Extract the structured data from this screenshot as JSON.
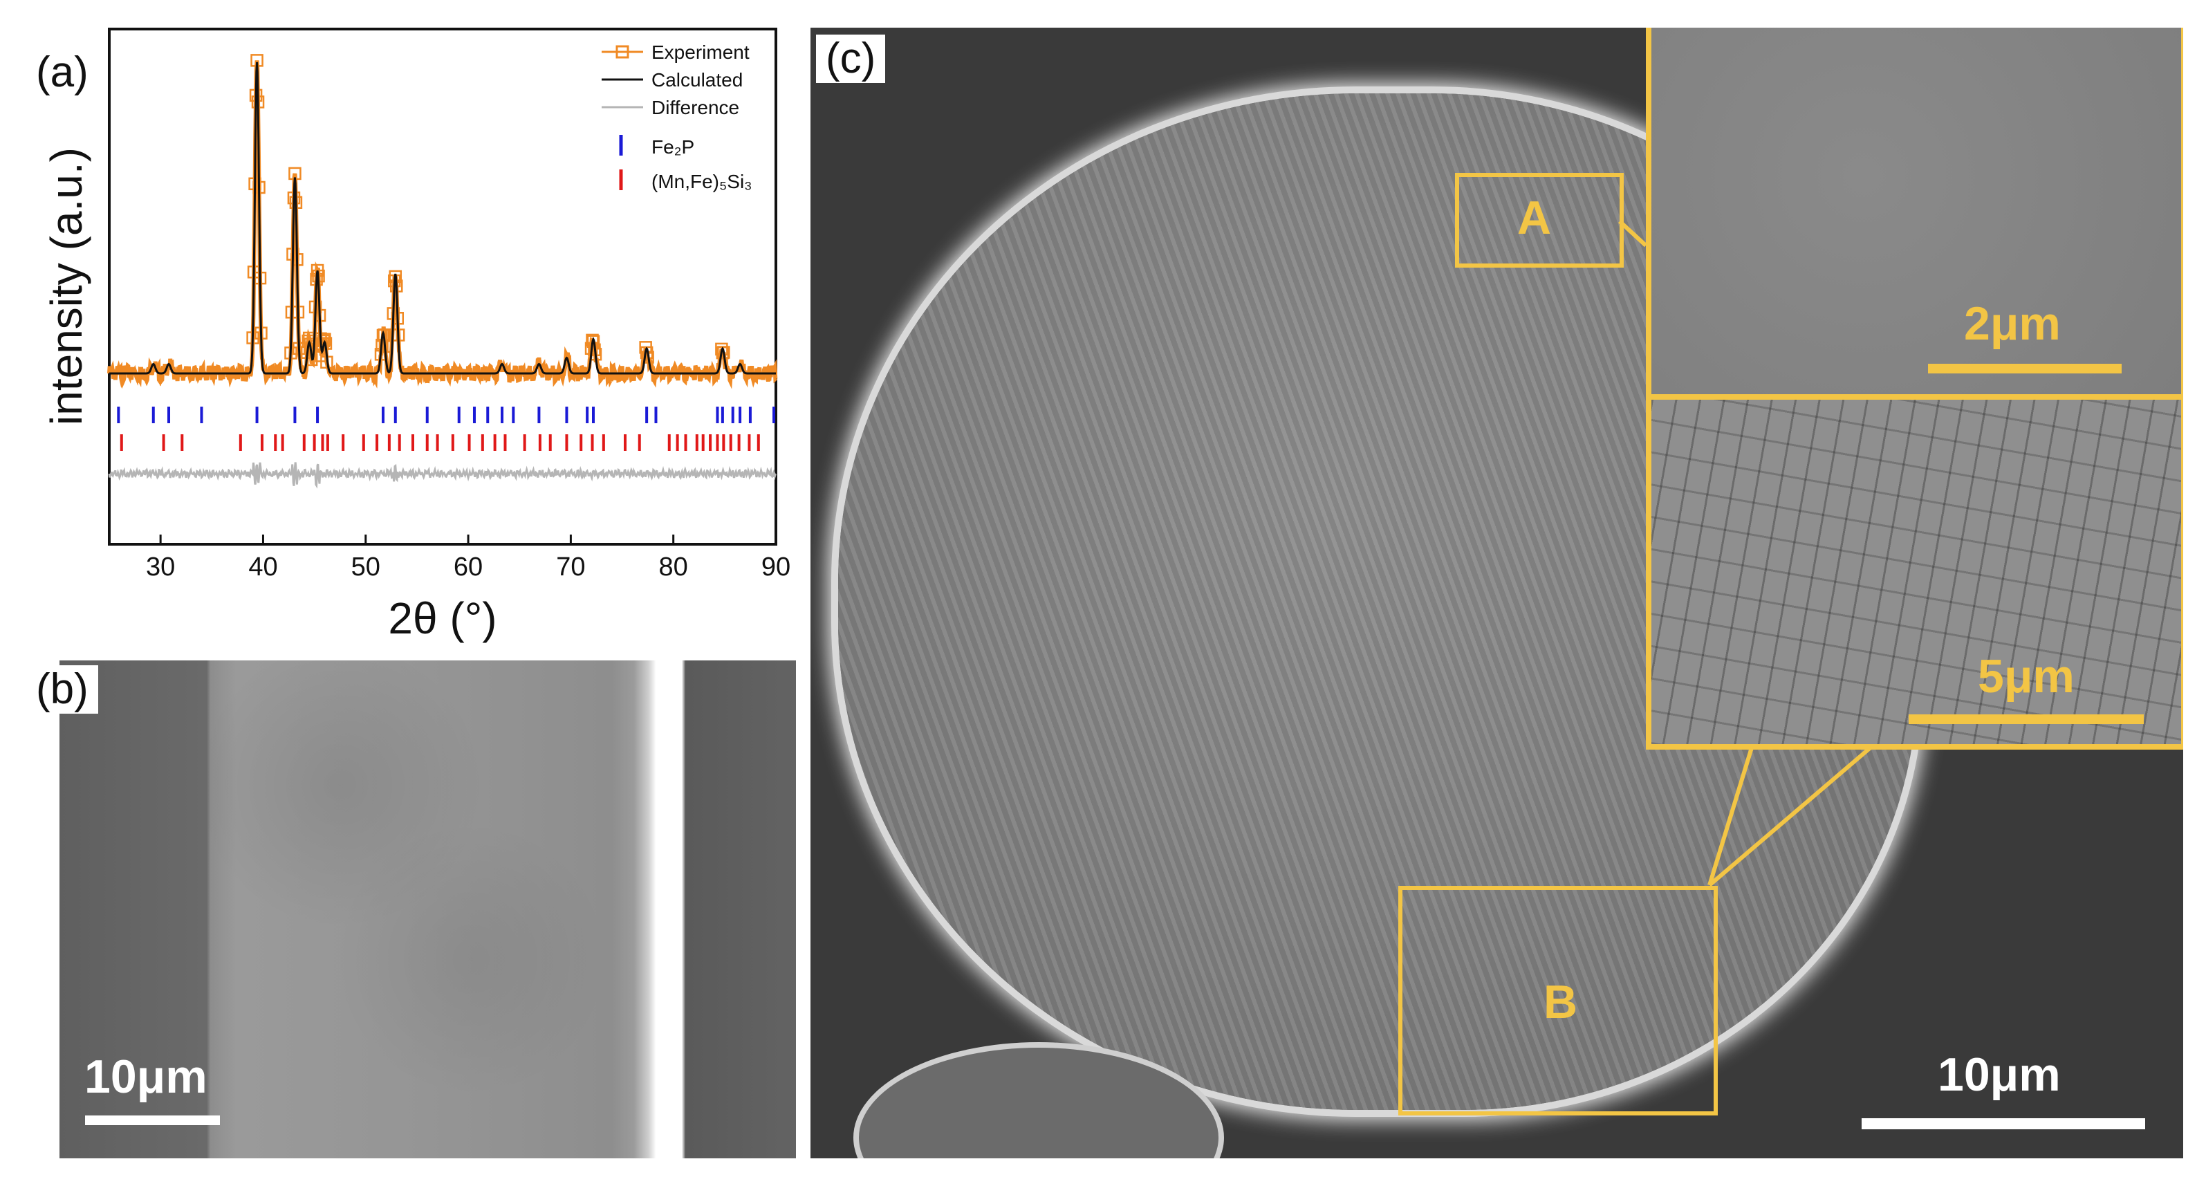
{
  "panels": {
    "a": {
      "label": "(a)"
    },
    "b": {
      "label": "(b)",
      "scalebar": "10μm"
    },
    "c": {
      "label": "(c)",
      "scalebar": "10μm",
      "box_a": "A",
      "box_b": "B",
      "inset_top_scalebar": "2μm",
      "inset_bottom_scalebar": "5μm"
    }
  },
  "colors": {
    "experiment": "#f08a24",
    "calculated": "#111111",
    "difference": "#b5b5b5",
    "fe2p": "#1a1ad6",
    "mnfesi": "#e01818",
    "highlight": "#f3c545"
  },
  "chart_data": {
    "type": "line",
    "xlabel": "2θ (°)",
    "ylabel": "intensity (a.u.)",
    "xlim": [
      25,
      90
    ],
    "xticks": [
      30,
      40,
      50,
      60,
      70,
      80,
      90
    ],
    "legend_position": "top-right",
    "legend": {
      "experiment": "Experiment",
      "calculated": "Calculated",
      "difference": "Difference",
      "fe2p": "Fe₂P",
      "mnfesi": "(Mn,Fe)₅Si₃"
    },
    "peaks": [
      {
        "x": 29.3,
        "y": 0.3
      },
      {
        "x": 30.8,
        "y": 0.3
      },
      {
        "x": 39.4,
        "y": 10.0
      },
      {
        "x": 43.1,
        "y": 6.3
      },
      {
        "x": 44.5,
        "y": 1.0
      },
      {
        "x": 45.3,
        "y": 3.3
      },
      {
        "x": 46.0,
        "y": 1.0
      },
      {
        "x": 51.7,
        "y": 1.3
      },
      {
        "x": 52.9,
        "y": 3.2
      },
      {
        "x": 63.3,
        "y": 0.3
      },
      {
        "x": 66.9,
        "y": 0.3
      },
      {
        "x": 69.6,
        "y": 0.5
      },
      {
        "x": 72.2,
        "y": 1.1
      },
      {
        "x": 77.4,
        "y": 0.8
      },
      {
        "x": 84.8,
        "y": 0.8
      },
      {
        "x": 86.5,
        "y": 0.3
      }
    ],
    "fe2p_ticks": [
      25.9,
      29.3,
      30.8,
      34.0,
      39.4,
      43.1,
      45.3,
      51.7,
      52.9,
      56.0,
      59.1,
      60.6,
      61.9,
      63.3,
      64.4,
      66.9,
      69.6,
      71.6,
      72.2,
      77.4,
      78.3,
      84.3,
      84.8,
      85.8,
      86.5,
      87.5,
      89.8
    ],
    "mnfesi_ticks": [
      26.2,
      30.3,
      32.1,
      37.8,
      39.9,
      41.2,
      41.9,
      44.0,
      45.0,
      45.8,
      46.3,
      47.8,
      49.8,
      51.1,
      52.3,
      53.3,
      54.6,
      56.0,
      57.0,
      58.5,
      60.1,
      61.4,
      62.6,
      63.6,
      65.5,
      67.0,
      68.0,
      69.6,
      71.0,
      72.1,
      73.2,
      75.3,
      76.7,
      79.6,
      80.4,
      81.2,
      82.3,
      82.9,
      83.6,
      84.3,
      84.9,
      85.6,
      86.4,
      87.4,
      88.3
    ]
  }
}
